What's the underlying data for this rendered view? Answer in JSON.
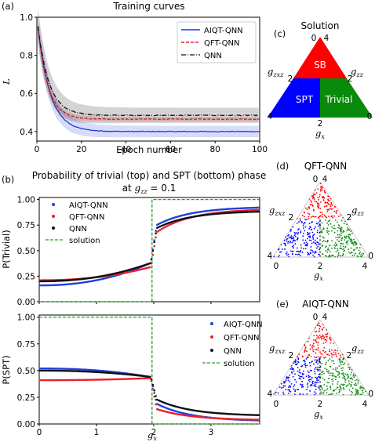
{
  "panel_labels": {
    "a": "(a)",
    "b": "(b)",
    "c": "(c)",
    "d": "(d)",
    "e": "(e)"
  },
  "colors": {
    "aiqt": "#1f3fe0",
    "qft": "#e8202a",
    "qnn": "#111111",
    "solution": "#2b9a2b",
    "sb": "#ff0000",
    "spt": "#0000ff",
    "trivial": "#0a8a0a"
  },
  "chart_data": [
    {
      "id": "a",
      "type": "line",
      "title": "Training curves",
      "xlabel": "Epoch number",
      "ylabel": "L",
      "xlim": [
        0,
        100
      ],
      "ylim": [
        0.35,
        1.0
      ],
      "xticks": [
        "0",
        "20",
        "40",
        "60",
        "80",
        "100"
      ],
      "yticks": [
        "0.4",
        "0.6",
        "0.8",
        "1.0"
      ],
      "legend_position": "top-right",
      "series": [
        {
          "name": "AIQT-QNN",
          "style": "solid",
          "color": "#1f3fe0",
          "start": 1.0,
          "end": 0.4,
          "tau": 5.5,
          "band": 0.03
        },
        {
          "name": "QFT-QNN",
          "style": "dashed",
          "color": "#e8202a",
          "start": 1.0,
          "end": 0.465,
          "tau": 4.5,
          "band": 0.012
        },
        {
          "name": "QNN",
          "style": "dashdot",
          "color": "#111111",
          "start": 1.0,
          "end": 0.485,
          "tau": 5.0,
          "band": 0.04
        }
      ]
    },
    {
      "id": "c",
      "type": "phase-diagram",
      "title": "Solution",
      "regions": [
        "SB",
        "SPT",
        "Trivial"
      ],
      "axis_labels": {
        "left": "g_zxz",
        "right": "g_zz",
        "bottom": "g_x"
      },
      "ticks": {
        "top_left": "0",
        "top_right": "4",
        "mid_left": "2",
        "mid_right": "2",
        "bottom_left": "4",
        "bottom_right": "0",
        "bottom_mid": "2"
      }
    },
    {
      "id": "b_top",
      "type": "scatter",
      "title": "Probability of trivial (top) and SPT (bottom) phase",
      "title_line2_prefix": "at ",
      "title_line2_math": "g_zz = 0.1",
      "ylabel": "P(Trivial)",
      "xlim": [
        0,
        3.85
      ],
      "ylim": [
        0,
        1.02
      ],
      "yticks": [
        "0.00",
        "0.25",
        "0.50",
        "0.75",
        "1.00"
      ],
      "legend_position": "upper-left",
      "series": [
        {
          "name": "AIQT-QNN",
          "color": "#1f3fe0",
          "left_start": 0.16,
          "left_end": 0.38,
          "right_start": 0.75,
          "right_end": 0.93
        },
        {
          "name": "QFT-QNN",
          "color": "#e8202a",
          "left_start": 0.21,
          "left_end": 0.34,
          "right_start": 0.68,
          "right_end": 0.91
        },
        {
          "name": "QNN",
          "color": "#111111",
          "left_start": 0.2,
          "left_end": 0.38,
          "right_start": 0.72,
          "right_end": 0.89
        }
      ],
      "solution": {
        "name": "solution",
        "x_switch": 1.97,
        "left": 0.0,
        "right": 1.0
      }
    },
    {
      "id": "b_bottom",
      "type": "scatter",
      "xlabel": "g_x",
      "ylabel": "P(SPT)",
      "xlim": [
        0,
        3.85
      ],
      "ylim": [
        0,
        1.02
      ],
      "xticks": [
        "0",
        "1",
        "2",
        "3"
      ],
      "yticks": [
        "0.00",
        "0.25",
        "0.50",
        "0.75",
        "1.00"
      ],
      "legend_position": "right",
      "series": [
        {
          "name": "AIQT-QNN",
          "color": "#1f3fe0",
          "left_start": 0.52,
          "left_end": 0.44,
          "right_start": 0.19,
          "right_end": 0.025
        },
        {
          "name": "QFT-QNN",
          "color": "#e8202a",
          "left_start": 0.41,
          "left_end": 0.43,
          "right_start": 0.14,
          "right_end": 0.035
        },
        {
          "name": "QNN",
          "color": "#111111",
          "left_start": 0.5,
          "left_end": 0.44,
          "right_start": 0.23,
          "right_end": 0.075
        }
      ],
      "solution": {
        "name": "solution",
        "x_switch": 1.97,
        "left": 1.0,
        "right": 0.0
      }
    },
    {
      "id": "d",
      "type": "phase-scatter",
      "title": "QFT-QNN",
      "axis_labels": {
        "left": "g_zxz",
        "right": "g_zz",
        "bottom": "g_x"
      }
    },
    {
      "id": "e",
      "type": "phase-scatter",
      "title": "AIQT-QNN",
      "axis_labels": {
        "left": "g_zxz",
        "right": "g_zz",
        "bottom": "g_x"
      }
    }
  ]
}
